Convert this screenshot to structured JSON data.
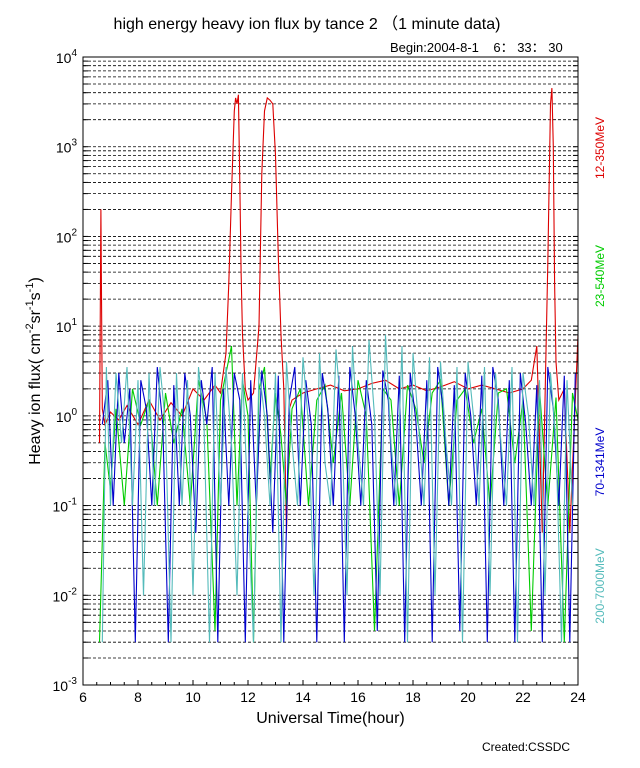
{
  "title": "high energy heavy ion flux by tance 2 （1 minute data)",
  "begin": "Begin:2004-8-1    6： 33： 30",
  "created": "Created:CSSDC",
  "chart_data": {
    "type": "line",
    "xlabel": "Universal Time(hour)",
    "ylabel_parts": [
      "Heavy  ion  flux( cm",
      "-2",
      "sr",
      "-1",
      "s",
      "-1",
      ")"
    ],
    "xlim": [
      6,
      24
    ],
    "ylim": [
      0.001,
      10000
    ],
    "yscale": "log",
    "grid": "horizontal dashed, minor log lines",
    "x_ticks": [
      "6",
      "8",
      "10",
      "12",
      "14",
      "16",
      "18",
      "20",
      "22",
      "24"
    ],
    "y_tick_labels": [
      {
        "base": "10",
        "exp": "4"
      },
      {
        "base": "10",
        "exp": "3"
      },
      {
        "base": "10",
        "exp": "2"
      },
      {
        "base": "10",
        "exp": "1"
      },
      {
        "base": "10",
        "exp": "0"
      },
      {
        "base": "10",
        "exp": "-1"
      },
      {
        "base": "10",
        "exp": "-2"
      },
      {
        "base": "10",
        "exp": "-3"
      }
    ],
    "series": [
      {
        "name": "12-350MeV",
        "color": "#dd0000",
        "x": [
          6.6,
          6.65,
          6.7,
          6.8,
          7.0,
          7.3,
          7.6,
          8.0,
          8.4,
          8.8,
          9.2,
          9.6,
          10.0,
          10.4,
          10.8,
          11.0,
          11.2,
          11.3,
          11.4,
          11.5,
          11.55,
          11.6,
          11.65,
          11.7,
          11.75,
          11.8,
          11.9,
          12.0,
          12.2,
          12.4,
          12.5,
          12.6,
          12.7,
          12.8,
          12.9,
          13.0,
          13.1,
          13.2,
          13.3,
          13.4,
          13.5,
          13.6,
          14.0,
          14.5,
          15.0,
          15.5,
          16.0,
          16.5,
          17.0,
          17.5,
          18.0,
          18.5,
          19.0,
          19.5,
          20.0,
          20.5,
          21.0,
          21.5,
          22.0,
          22.3,
          22.5,
          22.7,
          22.9,
          23.0,
          23.05,
          23.1,
          23.15,
          23.2,
          23.3,
          23.5,
          23.7,
          23.9,
          24.0
        ],
        "y": [
          0.5,
          200,
          1.2,
          0.8,
          1.1,
          0.9,
          1.3,
          0.8,
          1.5,
          0.9,
          1.4,
          1.0,
          2.0,
          1.5,
          2.2,
          1.8,
          5,
          30,
          300,
          2500,
          3500,
          3000,
          3800,
          400,
          40,
          8,
          2.0,
          1.5,
          1.8,
          10,
          500,
          2500,
          3500,
          3300,
          3000,
          800,
          60,
          8,
          2.0,
          0.05,
          1.2,
          1.5,
          1.8,
          2.0,
          2.2,
          1.9,
          2.0,
          2.3,
          2.5,
          2.0,
          2.2,
          1.9,
          2.1,
          2.4,
          2.0,
          2.2,
          2.0,
          1.8,
          2.0,
          2.5,
          6,
          0.05,
          50,
          3000,
          4500,
          1000,
          30,
          4,
          1.5,
          2.0,
          0.05,
          1.5,
          8
        ]
      },
      {
        "name": "23-540MeV",
        "color": "#00cc00",
        "x": [
          6.6,
          6.8,
          7.0,
          7.2,
          7.5,
          7.8,
          8.1,
          8.4,
          8.7,
          9.0,
          9.3,
          9.6,
          9.9,
          10.2,
          10.5,
          10.8,
          11.0,
          11.2,
          11.4,
          11.6,
          11.8,
          12.0,
          12.2,
          12.4,
          12.6,
          12.8,
          13.0,
          13.2,
          13.4,
          13.6,
          13.9,
          14.2,
          14.5,
          14.8,
          15.1,
          15.4,
          15.7,
          16.0,
          16.3,
          16.6,
          16.9,
          17.2,
          17.5,
          17.8,
          18.1,
          18.4,
          18.7,
          19.0,
          19.3,
          19.6,
          19.9,
          20.2,
          20.5,
          20.8,
          21.1,
          21.4,
          21.7,
          22.0,
          22.3,
          22.6,
          22.9,
          23.2,
          23.5,
          23.8,
          24.0
        ],
        "y": [
          0.003,
          0.5,
          0.15,
          1.2,
          0.1,
          2.0,
          0.8,
          1.5,
          0.1,
          1.8,
          0.5,
          1.2,
          0.1,
          2.5,
          0.9,
          0.004,
          1.5,
          3,
          6,
          0.1,
          2.5,
          1.0,
          0.003,
          2.0,
          3.5,
          0.2,
          1.8,
          0.6,
          0.1,
          1.2,
          2.0,
          0.1,
          1.5,
          2.2,
          0.3,
          1.8,
          0.1,
          2.5,
          1.0,
          0.004,
          2.0,
          1.5,
          0.1,
          2.2,
          1.2,
          0.3,
          1.8,
          2.5,
          0.1,
          1.5,
          2.0,
          0.5,
          1.2,
          0.1,
          1.8,
          2.0,
          0.3,
          1.5,
          0.004,
          2.0,
          0.1,
          1.6,
          0.003,
          1.8,
          0.9
        ]
      },
      {
        "name": "70-1341MeV",
        "color": "#0000cc",
        "x": [
          6.7,
          6.9,
          7.1,
          7.3,
          7.5,
          7.7,
          7.9,
          8.1,
          8.3,
          8.5,
          8.7,
          8.9,
          9.1,
          9.3,
          9.5,
          9.7,
          9.9,
          10.1,
          10.3,
          10.5,
          10.7,
          10.9,
          11.1,
          11.3,
          11.5,
          11.7,
          11.9,
          12.1,
          12.3,
          12.5,
          12.7,
          12.9,
          13.1,
          13.3,
          13.5,
          13.7,
          13.9,
          14.1,
          14.3,
          14.5,
          14.7,
          14.9,
          15.1,
          15.3,
          15.5,
          15.7,
          15.9,
          16.1,
          16.3,
          16.5,
          16.7,
          16.9,
          17.1,
          17.3,
          17.5,
          17.7,
          17.9,
          18.1,
          18.3,
          18.5,
          18.7,
          18.9,
          19.1,
          19.3,
          19.5,
          19.7,
          19.9,
          20.1,
          20.3,
          20.5,
          20.7,
          20.9,
          21.1,
          21.3,
          21.5,
          21.7,
          21.9,
          22.1,
          22.3,
          22.5,
          22.7,
          22.9,
          23.1,
          23.3,
          23.5,
          23.7,
          23.9
        ],
        "y": [
          0.8,
          2.5,
          0.1,
          3.0,
          0.5,
          2.0,
          0.003,
          2.5,
          1.2,
          0.1,
          3.5,
          0.8,
          0.003,
          2.2,
          0.1,
          3.0,
          1.0,
          0.05,
          2.5,
          0.8,
          3.5,
          0.003,
          2.0,
          0.1,
          3.0,
          1.5,
          0.003,
          2.5,
          0.1,
          3.2,
          1.0,
          0.05,
          2.8,
          0.003,
          1.5,
          3.5,
          0.1,
          2.5,
          0.8,
          0.003,
          3.0,
          1.2,
          0.1,
          2.8,
          0.003,
          3.5,
          1.0,
          0.1,
          2.5,
          0.8,
          0.004,
          3.2,
          1.5,
          0.1,
          2.8,
          0.003,
          3.0,
          0.9,
          0.1,
          2.5,
          0.003,
          3.5,
          1.2,
          0.1,
          2.2,
          0.004,
          3.0,
          1.0,
          0.1,
          2.8,
          0.003,
          3.5,
          1.5,
          0.1,
          2.5,
          0.003,
          3.0,
          0.8,
          0.1,
          2.2,
          0.003,
          3.5,
          1.2,
          0.1,
          2.8,
          0.003,
          3.0
        ]
      },
      {
        "name": "200-7000MeV",
        "color": "#55bbbb",
        "x": [
          6.7,
          6.85,
          7.0,
          7.2,
          7.4,
          7.6,
          7.8,
          8.0,
          8.2,
          8.4,
          8.6,
          8.8,
          9.0,
          9.2,
          9.4,
          9.6,
          9.8,
          10.0,
          10.2,
          10.4,
          10.6,
          10.8,
          11.0,
          11.2,
          11.4,
          11.6,
          11.8,
          12.0,
          12.2,
          12.4,
          12.6,
          12.8,
          13.0,
          13.2,
          13.4,
          13.6,
          13.8,
          14.0,
          14.2,
          14.4,
          14.6,
          14.8,
          15.0,
          15.2,
          15.4,
          15.6,
          15.8,
          16.0,
          16.2,
          16.4,
          16.6,
          16.8,
          17.0,
          17.2,
          17.4,
          17.6,
          17.8,
          18.0,
          18.2,
          18.4,
          18.6,
          18.8,
          19.0,
          19.2,
          19.4,
          19.6,
          19.8,
          20.0,
          20.2,
          20.4,
          20.6,
          20.8,
          21.0,
          21.2,
          21.4,
          21.6,
          21.8,
          22.0,
          22.2,
          22.4,
          22.6,
          22.8,
          23.0,
          23.2,
          23.4,
          23.6,
          23.8
        ],
        "y": [
          0.003,
          3.5,
          0.1,
          3.0,
          0.5,
          3.5,
          0.1,
          2.5,
          0.01,
          3.0,
          0.1,
          3.5,
          0.8,
          0.003,
          3.0,
          0.1,
          2.5,
          0.01,
          3.5,
          0.8,
          0.003,
          3.0,
          0.1,
          3.5,
          0.5,
          0.01,
          3.0,
          0.1,
          0.003,
          3.5,
          1.0,
          0.1,
          3.0,
          0.003,
          4.0,
          0.5,
          0.1,
          4.5,
          0.8,
          0.01,
          5.0,
          0.3,
          0.1,
          5.5,
          1.0,
          0.01,
          6.0,
          0.5,
          0.1,
          7.0,
          1.0,
          0.01,
          8.0,
          0.5,
          0.1,
          6.0,
          0.003,
          5.0,
          0.8,
          0.1,
          4.5,
          0.01,
          4.0,
          0.5,
          0.1,
          3.5,
          0.003,
          4.0,
          1.0,
          0.1,
          3.5,
          0.01,
          3.0,
          0.5,
          0.1,
          3.5,
          0.003,
          3.0,
          1.0,
          0.1,
          2.5,
          0.01,
          3.0,
          0.5,
          0.003,
          2.5,
          0.1
        ]
      }
    ]
  }
}
